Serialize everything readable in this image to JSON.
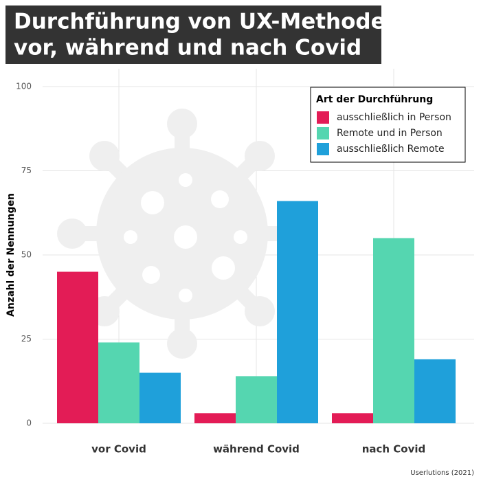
{
  "chart_data": {
    "type": "bar",
    "title": [
      "Durchführung von UX-Methoden",
      "vor, während und nach Covid"
    ],
    "y_label": "Anzahl der Nennungen",
    "categories": [
      "vor Covid",
      "während Covid",
      "nach Covid"
    ],
    "series": [
      {
        "name": "ausschließlich in Person",
        "color": "#e31c56",
        "values": [
          45,
          3,
          3
        ]
      },
      {
        "name": "Remote und in Person",
        "color": "#55d6b0",
        "values": [
          24,
          14,
          55
        ]
      },
      {
        "name": "ausschließlich Remote",
        "color": "#1fa0da",
        "values": [
          15,
          66,
          19
        ]
      }
    ],
    "legend_title": "Art der Durchführung",
    "legend_position": "top-right",
    "ylim": [
      0,
      100
    ],
    "yticks": [
      0,
      25,
      50,
      75,
      100
    ],
    "grid": true,
    "source": "Userlutions (2021)"
  }
}
